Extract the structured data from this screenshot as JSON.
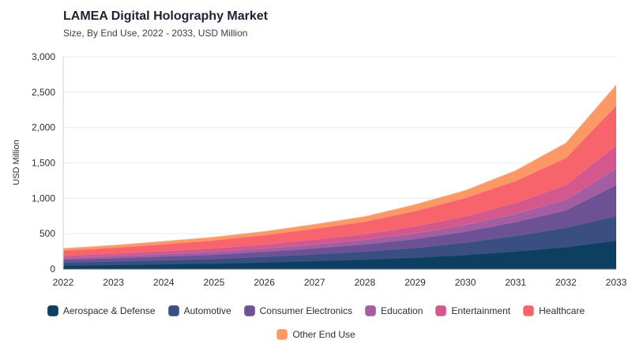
{
  "header": {
    "title": "LAMEA Digital Holography Market",
    "subtitle": "Size, By End Use, 2022 - 2033, USD Million"
  },
  "chart_data": {
    "type": "area",
    "stacked": true,
    "title": "LAMEA Digital Holography Market",
    "subtitle": "Size, By End Use, 2022 - 2033, USD Million",
    "xlabel": "",
    "ylabel": "USD Million",
    "ylim": [
      0,
      3000
    ],
    "yticks": [
      "0",
      "500",
      "1,000",
      "1,500",
      "2,000",
      "2,500",
      "3,000"
    ],
    "categories": [
      "2022",
      "2023",
      "2024",
      "2025",
      "2026",
      "2027",
      "2028",
      "2029",
      "2030",
      "2031",
      "2032",
      "2033"
    ],
    "grid": true,
    "legend_position": "bottom",
    "series": [
      {
        "name": "Aerospace & Defense",
        "color": "#0d4060",
        "stroke": "#2a5a78",
        "values": [
          50,
          60,
          70,
          80,
          95,
          115,
          135,
          160,
          200,
          250,
          310,
          400
        ]
      },
      {
        "name": "Automotive",
        "color": "#3a4e82",
        "stroke": "#5a6ba0",
        "values": [
          45,
          50,
          55,
          65,
          80,
          95,
          115,
          140,
          175,
          220,
          275,
          350
        ]
      },
      {
        "name": "Consumer Electronics",
        "color": "#6c5294",
        "stroke": "#8a72b0",
        "values": [
          40,
          45,
          55,
          60,
          70,
          85,
          100,
          125,
          155,
          195,
          245,
          440
        ]
      },
      {
        "name": "Education",
        "color": "#a35da0",
        "stroke": "#bb7db8",
        "values": [
          25,
          30,
          35,
          40,
          45,
          55,
          65,
          80,
          95,
          115,
          150,
          230
        ]
      },
      {
        "name": "Entertainment",
        "color": "#d5588d",
        "stroke": "#e07ba6",
        "values": [
          30,
          35,
          40,
          50,
          60,
          70,
          80,
          100,
          120,
          155,
          210,
          330
        ]
      },
      {
        "name": "Healthcare",
        "color": "#f7646b",
        "stroke": "#f8868a",
        "values": [
          70,
          80,
          95,
          110,
          130,
          150,
          175,
          215,
          260,
          310,
          380,
          560
        ]
      },
      {
        "name": "Other End Use",
        "color": "#fc9866",
        "stroke": "#fdb088",
        "values": [
          30,
          35,
          40,
          45,
          50,
          60,
          70,
          90,
          105,
          145,
          210,
          290
        ]
      }
    ]
  }
}
